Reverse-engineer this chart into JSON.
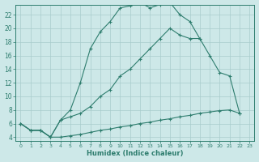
{
  "xlabel": "Humidex (Indice chaleur)",
  "background_color": "#cde8e8",
  "grid_color": "#a8cccc",
  "line_color": "#2e7d6e",
  "xlim": [
    -0.5,
    23.5
  ],
  "ylim": [
    3.5,
    23.5
  ],
  "yticks": [
    4,
    6,
    8,
    10,
    12,
    14,
    16,
    18,
    20,
    22
  ],
  "xticks": [
    0,
    1,
    2,
    3,
    4,
    5,
    6,
    7,
    8,
    9,
    10,
    11,
    12,
    13,
    14,
    15,
    16,
    17,
    18,
    19,
    20,
    21,
    22,
    23
  ],
  "series": [
    {
      "x": [
        0,
        1,
        2,
        3,
        4,
        5,
        6,
        7,
        8,
        9,
        10,
        11,
        12,
        13,
        14,
        15,
        16,
        17,
        18
      ],
      "y": [
        6,
        5,
        5,
        4,
        6.5,
        8,
        12,
        17,
        19.5,
        21,
        23,
        23.3,
        23.8,
        23,
        23.5,
        23.8,
        22,
        21,
        18.5
      ]
    },
    {
      "x": [
        0,
        1,
        2,
        3,
        4,
        5,
        6,
        7,
        8,
        9,
        10,
        11,
        12,
        13,
        14,
        15,
        16,
        17,
        18,
        19,
        20,
        21,
        22
      ],
      "y": [
        6,
        5,
        5,
        4,
        6.5,
        7,
        7.5,
        8.5,
        10,
        11,
        13,
        14,
        15.5,
        17,
        18.5,
        20,
        19,
        18.5,
        18.5,
        16,
        13.5,
        13,
        7.5
      ]
    },
    {
      "x": [
        0,
        1,
        2,
        3,
        4,
        5,
        6,
        7,
        8,
        9,
        10,
        11,
        12,
        13,
        14,
        15,
        16,
        17,
        18,
        19,
        20,
        21,
        22
      ],
      "y": [
        6,
        5,
        5,
        4,
        4,
        4.2,
        4.4,
        4.7,
        5.0,
        5.2,
        5.5,
        5.7,
        6.0,
        6.2,
        6.5,
        6.7,
        7.0,
        7.2,
        7.5,
        7.7,
        7.9,
        8.0,
        7.5
      ]
    }
  ]
}
